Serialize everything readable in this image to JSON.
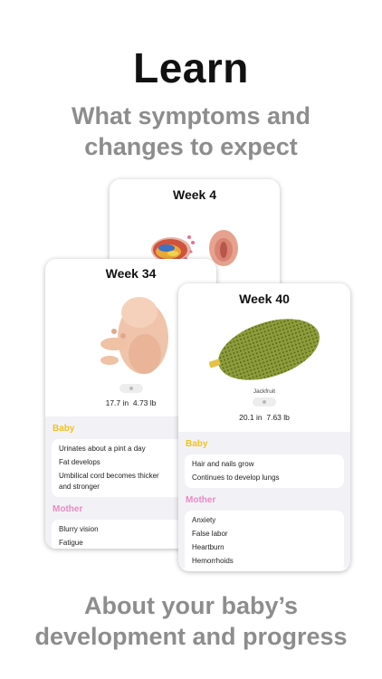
{
  "headline": "Learn",
  "subhead": [
    "What symptoms and",
    "changes to expect"
  ],
  "footer": [
    "About your baby’s",
    "development and progress"
  ],
  "colors": {
    "baby_label": "#f2c21f",
    "mother_label": "#e98ac4",
    "subtext": "#8d8d8d"
  },
  "cards": {
    "back": {
      "title": "Week 4"
    },
    "mid": {
      "title": "Week 34",
      "length": "17.7 in",
      "weight": "4.73 lb",
      "baby_label": "Baby",
      "baby_items": [
        "Urinates about a pint a day",
        "Fat develops",
        "Umbilical cord becomes thicker",
        "and stronger"
      ],
      "mother_label": "Mother",
      "mother_items": [
        "Blurry vision",
        "Fatigue"
      ]
    },
    "front": {
      "title": "Week 40",
      "fruit": "Jackfruit",
      "length": "20.1 in",
      "weight": "7.63 lb",
      "baby_label": "Baby",
      "baby_items": [
        "Hair and nails grow",
        "Continues to develop lungs"
      ],
      "mother_label": "Mother",
      "mother_items": [
        "Anxiety",
        "False labor",
        "Heartburn",
        "Hemorrhoids"
      ]
    }
  }
}
